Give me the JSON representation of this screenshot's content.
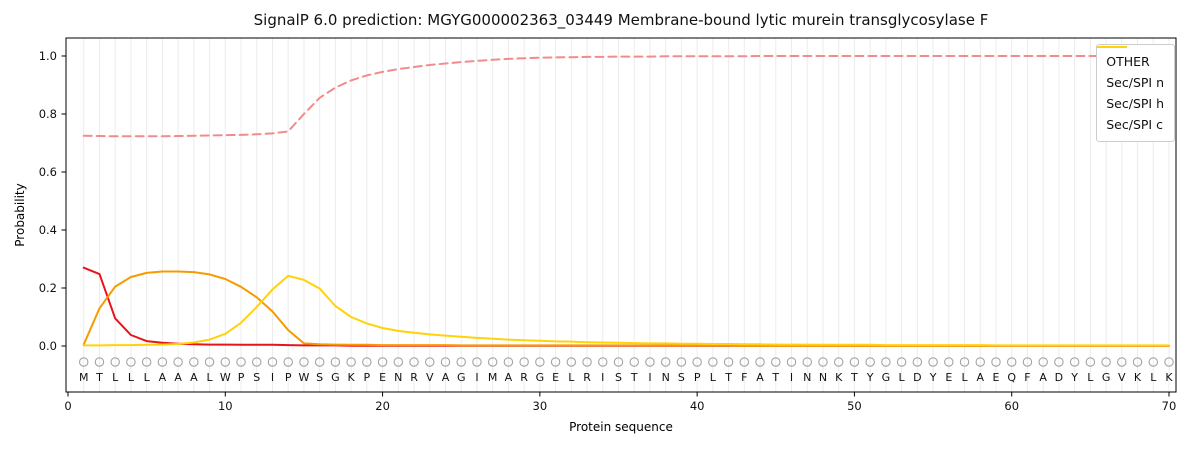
{
  "chart_data": {
    "type": "line",
    "title": "SignalP 6.0 prediction: MGYG000002363_03449 Membrane-bound lytic murein transglycosylase F",
    "xlabel": "Protein sequence",
    "ylabel": "Probability",
    "xticks": [
      0,
      10,
      20,
      30,
      40,
      50,
      60,
      70
    ],
    "yticks": [
      0.0,
      0.2,
      0.4,
      0.6,
      0.8,
      1.0
    ],
    "xlim": [
      0,
      70.5
    ],
    "ylim": [
      -0.16,
      1.06
    ],
    "grid": "vertical line per residue, light gray",
    "legend_position": "upper right",
    "x_start": 1,
    "sequence": "MTLLLAAALWPSIPWSGKPENRVAGIMARGELRISTINSPLTFATINNKTYGLDYELAEQFADYLGVKLK",
    "sequence_marker": "O",
    "series": [
      {
        "name": "OTHER",
        "color": "#f28b8b",
        "style": "dashed",
        "values": [
          0.725,
          0.724,
          0.723,
          0.723,
          0.723,
          0.723,
          0.724,
          0.725,
          0.726,
          0.727,
          0.728,
          0.73,
          0.733,
          0.74,
          0.8,
          0.856,
          0.891,
          0.916,
          0.933,
          0.945,
          0.955,
          0.962,
          0.969,
          0.974,
          0.979,
          0.983,
          0.987,
          0.99,
          0.992,
          0.994,
          0.995,
          0.996,
          0.997,
          0.997,
          0.998,
          0.998,
          0.998,
          0.999,
          0.999,
          0.999,
          0.999,
          0.999,
          0.999,
          1.0,
          1.0,
          1.0,
          1.0,
          1.0,
          1.0,
          1.0,
          1.0,
          1.0,
          1.0,
          1.0,
          1.0,
          1.0,
          1.0,
          1.0,
          1.0,
          1.0,
          1.0,
          1.0,
          1.0,
          1.0,
          1.0,
          1.0,
          1.0,
          1.0,
          1.0,
          1.0
        ]
      },
      {
        "name": "Sec/SPI n",
        "color": "#e8141c",
        "style": "solid",
        "values": [
          0.27,
          0.248,
          0.095,
          0.038,
          0.017,
          0.011,
          0.008,
          0.006,
          0.005,
          0.005,
          0.004,
          0.004,
          0.004,
          0.003,
          0.002,
          0.002,
          0.002,
          0.001,
          0.001,
          0.001,
          0.001,
          0.001,
          0.001,
          0.001,
          0.001,
          0.001,
          0.001,
          0.001,
          0.001,
          0.001,
          0.001,
          0.001,
          0.001,
          0.001,
          0.001,
          0.001,
          0.001,
          0.001,
          0.001,
          0.001,
          0.001,
          0.001,
          0.001,
          0.001,
          0.001,
          0.001,
          0.001,
          0.001,
          0.001,
          0.001,
          0.001,
          0.001,
          0.001,
          0.001,
          0.001,
          0.001,
          0.001,
          0.001,
          0.001,
          0.001,
          0.001,
          0.001,
          0.001,
          0.001,
          0.001,
          0.001,
          0.001,
          0.001,
          0.001,
          0.001
        ]
      },
      {
        "name": "Sec/SPI h",
        "color": "#f59b00",
        "style": "solid",
        "values": [
          0.005,
          0.13,
          0.205,
          0.238,
          0.252,
          0.257,
          0.257,
          0.255,
          0.247,
          0.231,
          0.204,
          0.168,
          0.119,
          0.055,
          0.009,
          0.006,
          0.005,
          0.004,
          0.004,
          0.003,
          0.003,
          0.003,
          0.003,
          0.003,
          0.002,
          0.002,
          0.002,
          0.002,
          0.002,
          0.002,
          0.002,
          0.002,
          0.002,
          0.002,
          0.002,
          0.002,
          0.002,
          0.002,
          0.002,
          0.002,
          0.002,
          0.002,
          0.001,
          0.001,
          0.001,
          0.001,
          0.001,
          0.001,
          0.001,
          0.001,
          0.001,
          0.001,
          0.001,
          0.001,
          0.001,
          0.001,
          0.001,
          0.001,
          0.001,
          0.001,
          0.001,
          0.001,
          0.001,
          0.001,
          0.001,
          0.001,
          0.001,
          0.001,
          0.001,
          0.001
        ]
      },
      {
        "name": "Sec/SPI c",
        "color": "#ffd20a",
        "style": "solid",
        "values": [
          0.002,
          0.002,
          0.003,
          0.003,
          0.004,
          0.005,
          0.007,
          0.012,
          0.022,
          0.042,
          0.08,
          0.135,
          0.195,
          0.242,
          0.228,
          0.198,
          0.138,
          0.1,
          0.078,
          0.062,
          0.052,
          0.046,
          0.04,
          0.036,
          0.032,
          0.028,
          0.025,
          0.022,
          0.02,
          0.018,
          0.016,
          0.015,
          0.013,
          0.012,
          0.011,
          0.01,
          0.009,
          0.009,
          0.008,
          0.008,
          0.007,
          0.007,
          0.006,
          0.006,
          0.005,
          0.005,
          0.005,
          0.004,
          0.004,
          0.004,
          0.004,
          0.003,
          0.003,
          0.003,
          0.003,
          0.003,
          0.003,
          0.003,
          0.002,
          0.002,
          0.002,
          0.002,
          0.002,
          0.002,
          0.002,
          0.002,
          0.002,
          0.002,
          0.002,
          0.002
        ]
      }
    ]
  }
}
